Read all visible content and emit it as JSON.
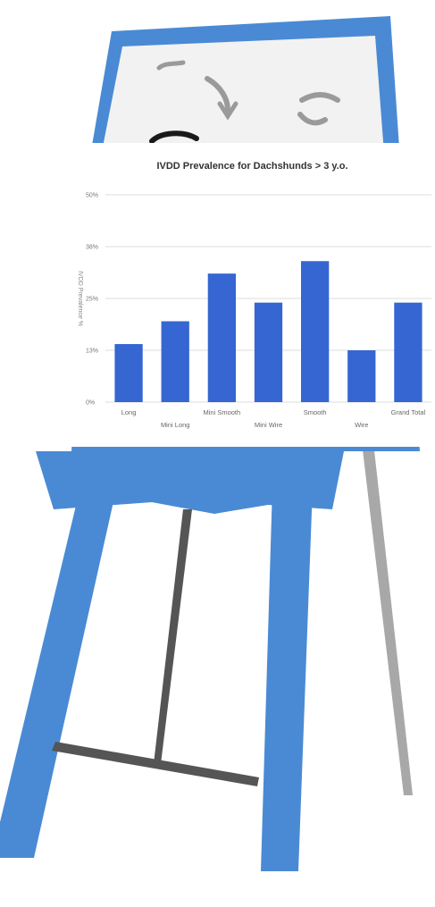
{
  "colors": {
    "easel_blue": "#4a8ad4",
    "easel_frame_dark": "#3f7fcc",
    "board_gray": "#f2f2f2",
    "bar_blue": "#3566d1",
    "prop_stick": "#555555",
    "back_leg": "#a8a8a8",
    "doodle": "#9a9a9a",
    "marker": "#1a1a1a"
  },
  "icons": [
    "easel",
    "curved-arrow-doodle",
    "scribble-doodle",
    "marker-cap"
  ],
  "chart_data": {
    "type": "bar",
    "title": "IVDD Prevalence for Dachshunds > 3 y.o.",
    "ylabel": "IVDD Prevalence %",
    "xlabel": "",
    "categories": [
      "Long",
      "Mini Long",
      "Mini Smooth",
      "Mini Wire",
      "Smooth",
      "Wire",
      "Grand Total"
    ],
    "values": [
      14,
      19.5,
      31,
      24,
      34,
      12.5,
      24
    ],
    "ylim": [
      0,
      50
    ],
    "yticks": [
      0,
      12.5,
      25,
      37.5,
      50
    ],
    "ytick_labels": [
      "0%",
      "13%",
      "25%",
      "38%",
      "50%"
    ],
    "grid": true,
    "legend": "none"
  }
}
